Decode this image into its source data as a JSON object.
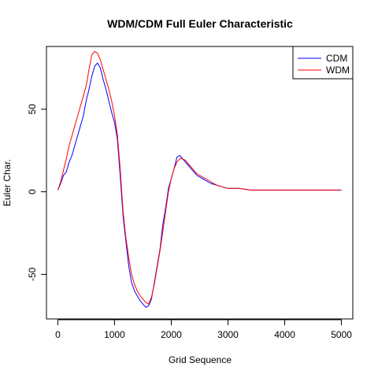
{
  "chart_data": {
    "type": "line",
    "title": "WDM/CDM Full Euler Characteristic",
    "xlabel": "Grid Sequence",
    "ylabel": "Euler Char.",
    "xlim": [
      0,
      5000
    ],
    "ylim": [
      -77,
      88
    ],
    "xticks": [
      0,
      1000,
      2000,
      3000,
      4000,
      5000
    ],
    "yticks": [
      -50,
      0,
      50
    ],
    "grid": false,
    "legend_position": "top-right",
    "series": [
      {
        "name": "CDM",
        "color": "#0000ff",
        "x": [
          0,
          50,
          100,
          150,
          200,
          250,
          300,
          350,
          400,
          450,
          500,
          550,
          600,
          650,
          700,
          750,
          800,
          850,
          900,
          950,
          1000,
          1050,
          1100,
          1150,
          1200,
          1250,
          1300,
          1350,
          1400,
          1450,
          1500,
          1550,
          1600,
          1650,
          1700,
          1750,
          1800,
          1850,
          1900,
          1950,
          2000,
          2050,
          2100,
          2150,
          2200,
          2250,
          2300,
          2350,
          2400,
          2450,
          2500,
          2600,
          2700,
          2800,
          2900,
          3000,
          3200,
          3400,
          3600,
          4000,
          4500,
          5000
        ],
        "y": [
          1,
          5,
          10,
          12,
          18,
          22,
          28,
          34,
          40,
          46,
          55,
          62,
          70,
          76,
          78,
          75,
          68,
          62,
          55,
          48,
          42,
          32,
          10,
          -15,
          -30,
          -45,
          -55,
          -60,
          -63,
          -66,
          -68,
          -70,
          -69,
          -65,
          -55,
          -45,
          -35,
          -20,
          -10,
          2,
          8,
          14,
          21,
          22,
          20,
          18,
          16,
          14,
          12,
          10,
          9,
          7,
          5,
          4,
          3,
          2,
          2,
          1,
          1,
          1,
          1,
          1
        ]
      },
      {
        "name": "WDM",
        "color": "#ff0000",
        "x": [
          0,
          50,
          100,
          150,
          200,
          250,
          300,
          350,
          400,
          450,
          500,
          550,
          600,
          650,
          700,
          750,
          800,
          850,
          900,
          950,
          1000,
          1050,
          1100,
          1150,
          1200,
          1250,
          1300,
          1350,
          1400,
          1450,
          1500,
          1550,
          1600,
          1650,
          1700,
          1750,
          1800,
          1850,
          1900,
          1950,
          2000,
          2050,
          2100,
          2150,
          2200,
          2250,
          2300,
          2350,
          2400,
          2450,
          2500,
          2600,
          2700,
          2800,
          2900,
          3000,
          3200,
          3400,
          3600,
          4000,
          4500,
          5000
        ],
        "y": [
          1,
          6,
          13,
          20,
          28,
          34,
          40,
          46,
          52,
          58,
          64,
          74,
          83,
          85,
          84,
          80,
          74,
          68,
          62,
          55,
          46,
          35,
          14,
          -12,
          -28,
          -40,
          -50,
          -56,
          -60,
          -63,
          -65,
          -67,
          -68,
          -64,
          -56,
          -46,
          -36,
          -24,
          -12,
          0,
          8,
          14,
          18,
          20,
          20,
          19,
          17,
          15,
          13,
          11,
          10,
          8,
          6,
          4,
          3,
          2,
          2,
          1,
          1,
          1,
          1,
          1
        ]
      }
    ]
  }
}
